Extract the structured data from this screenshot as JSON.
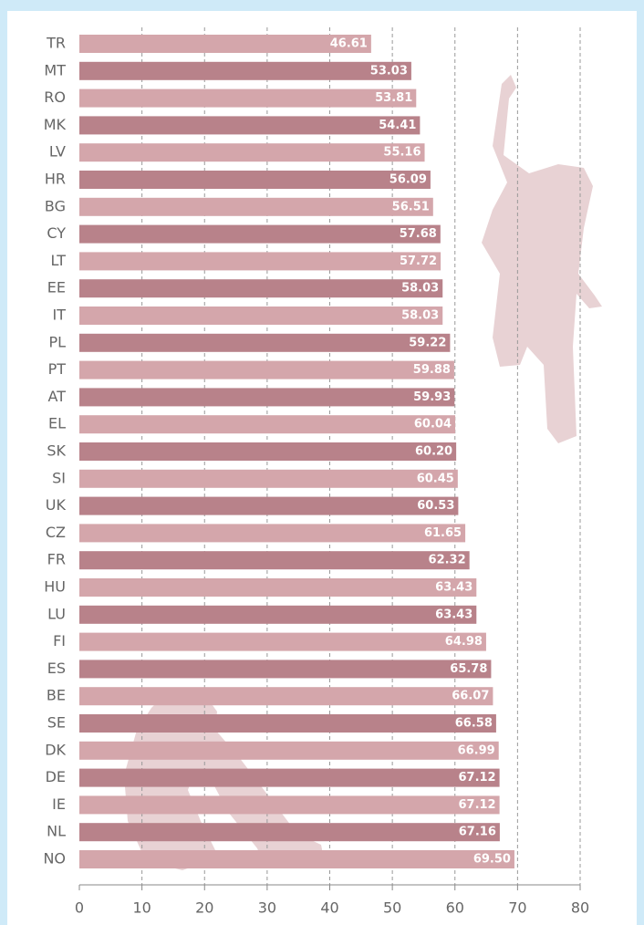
{
  "chart_data": {
    "type": "hbar",
    "categories": [
      "TR",
      "MT",
      "RO",
      "MK",
      "LV",
      "HR",
      "BG",
      "CY",
      "LT",
      "EE",
      "IT",
      "PL",
      "PT",
      "AT",
      "EL",
      "SK",
      "SI",
      "UK",
      "CZ",
      "FR",
      "HU",
      "LU",
      "FI",
      "ES",
      "BE",
      "SE",
      "DK",
      "DE",
      "IE",
      "NL",
      "NO"
    ],
    "values": [
      46.61,
      53.03,
      53.81,
      54.41,
      55.16,
      56.09,
      56.51,
      57.68,
      57.72,
      58.03,
      58.03,
      59.22,
      59.88,
      59.93,
      60.04,
      60.2,
      60.45,
      60.53,
      61.65,
      62.32,
      63.43,
      63.43,
      64.98,
      65.78,
      66.07,
      66.58,
      66.99,
      67.12,
      67.12,
      67.16,
      69.5
    ],
    "value_labels": [
      "46.61",
      "53.03",
      "53.81",
      "54.41",
      "55.16",
      "56.09",
      "56.51",
      "57.68",
      "57.72",
      "58.03",
      "58.03",
      "59.22",
      "59.88",
      "59.93",
      "60.04",
      "60.20",
      "60.45",
      "60.53",
      "61.65",
      "62.32",
      "63.43",
      "63.43",
      "64.98",
      "65.78",
      "66.07",
      "66.58",
      "66.99",
      "67.12",
      "67.12",
      "67.16",
      "69.50"
    ],
    "colors": [
      "#d4a6ab",
      "#b8828a"
    ],
    "xlim": [
      0,
      80
    ],
    "xticks": [
      0,
      10,
      20,
      30,
      40,
      50,
      60,
      70,
      80
    ],
    "grid": true
  }
}
